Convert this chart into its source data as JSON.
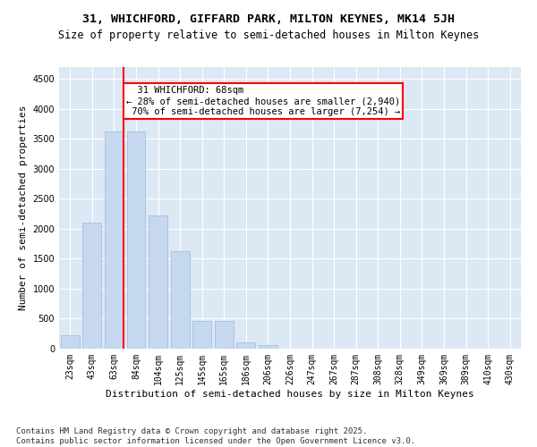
{
  "title_line1": "31, WHICHFORD, GIFFARD PARK, MILTON KEYNES, MK14 5JH",
  "title_line2": "Size of property relative to semi-detached houses in Milton Keynes",
  "xlabel": "Distribution of semi-detached houses by size in Milton Keynes",
  "ylabel": "Number of semi-detached properties",
  "categories": [
    "23sqm",
    "43sqm",
    "63sqm",
    "84sqm",
    "104sqm",
    "125sqm",
    "145sqm",
    "165sqm",
    "186sqm",
    "206sqm",
    "226sqm",
    "247sqm",
    "267sqm",
    "287sqm",
    "308sqm",
    "328sqm",
    "349sqm",
    "369sqm",
    "389sqm",
    "410sqm",
    "430sqm"
  ],
  "values": [
    230,
    2100,
    3620,
    3620,
    2230,
    1620,
    460,
    460,
    100,
    55,
    0,
    0,
    0,
    0,
    0,
    0,
    0,
    0,
    0,
    0,
    0
  ],
  "bar_color": "#c5d8f0",
  "bar_edge_color": "#a0b8d8",
  "vline_x": 2.425,
  "vline_color": "red",
  "property_size": "68sqm",
  "property_name": "31 WHICHFORD",
  "pct_smaller": 28,
  "n_smaller": 2940,
  "pct_larger": 70,
  "n_larger": 7254,
  "annotation_box_color": "red",
  "ylim": [
    0,
    4700
  ],
  "yticks": [
    0,
    500,
    1000,
    1500,
    2000,
    2500,
    3000,
    3500,
    4000,
    4500
  ],
  "background_color": "#dde8f5",
  "footer_line1": "Contains HM Land Registry data © Crown copyright and database right 2025.",
  "footer_line2": "Contains public sector information licensed under the Open Government Licence v3.0.",
  "title_fontsize": 9.5,
  "subtitle_fontsize": 8.5,
  "axis_label_fontsize": 8,
  "tick_fontsize": 7,
  "annotation_fontsize": 7.5,
  "footer_fontsize": 6.5
}
